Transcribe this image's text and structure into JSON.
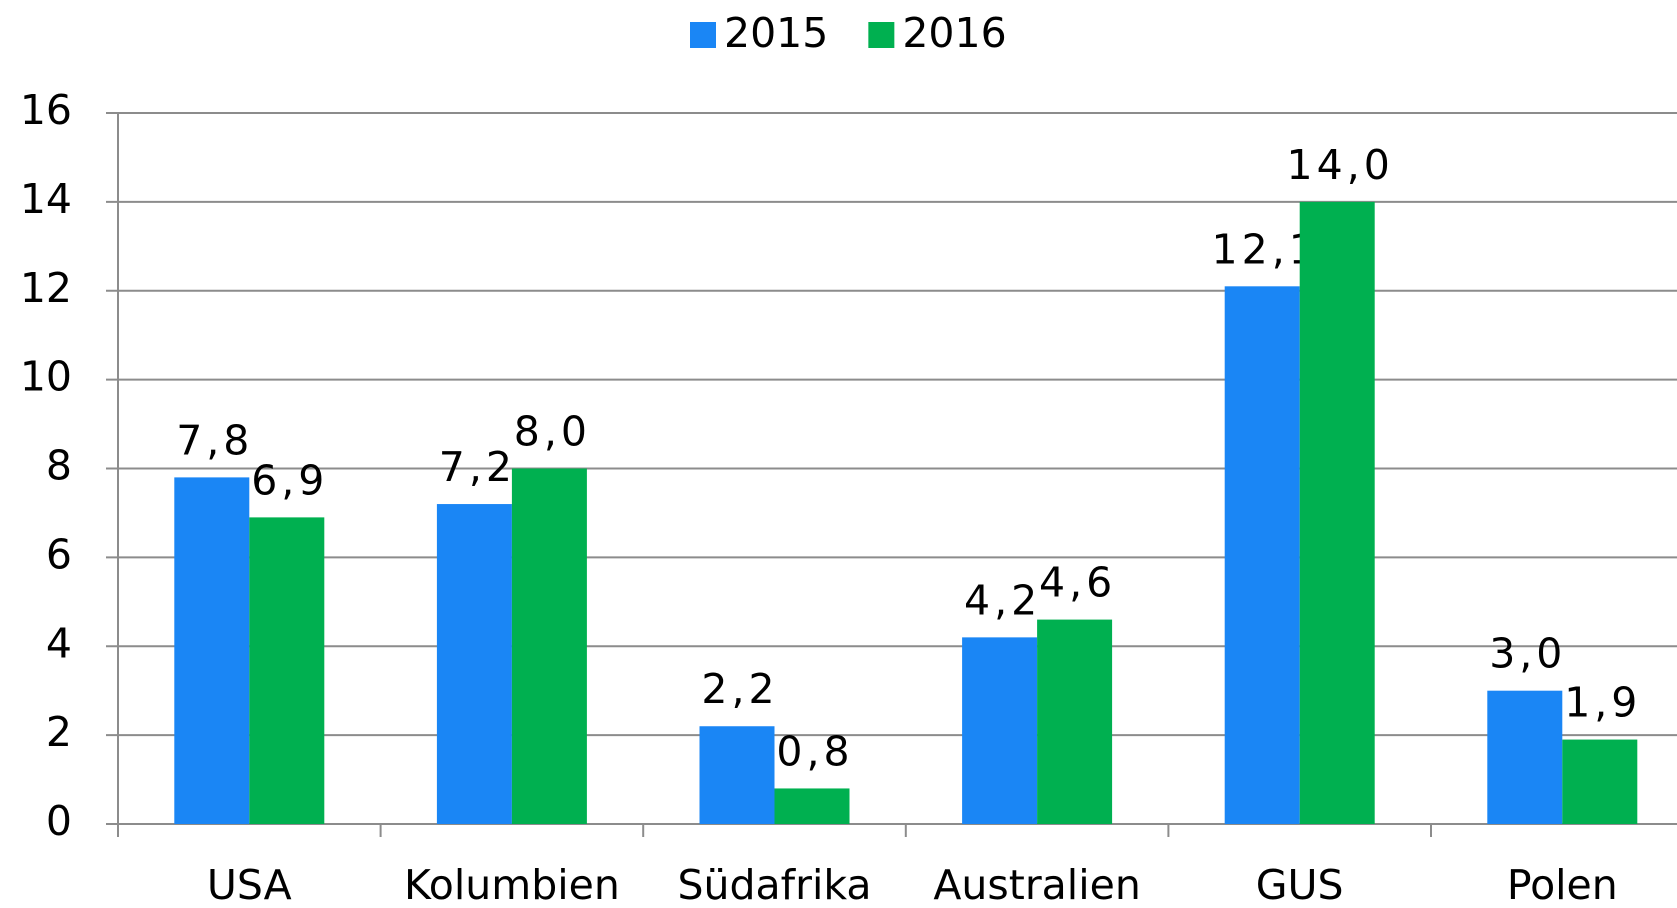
{
  "chart_data": {
    "type": "bar",
    "categories": [
      "USA",
      "Kolumbien",
      "Südafrika",
      "Australien",
      "GUS",
      "Polen"
    ],
    "series": [
      {
        "name": "2015",
        "color": "#1a86f5",
        "values": [
          7.8,
          7.2,
          2.2,
          4.2,
          12.1,
          3.0
        ],
        "value_labels": [
          "7,8",
          "7,2",
          "2,2",
          "4,2",
          "12,1",
          "3,0"
        ]
      },
      {
        "name": "2016",
        "color": "#00b050",
        "values": [
          6.9,
          8.0,
          0.8,
          4.6,
          14.0,
          1.9
        ],
        "value_labels": [
          "6,9",
          "8,0",
          "0,8",
          "4,6",
          "14,0",
          "1,9"
        ]
      }
    ],
    "ylim": [
      0,
      16
    ],
    "yticks": [
      0,
      2,
      4,
      6,
      8,
      10,
      12,
      14,
      16
    ],
    "grid": true,
    "legend": "top"
  }
}
